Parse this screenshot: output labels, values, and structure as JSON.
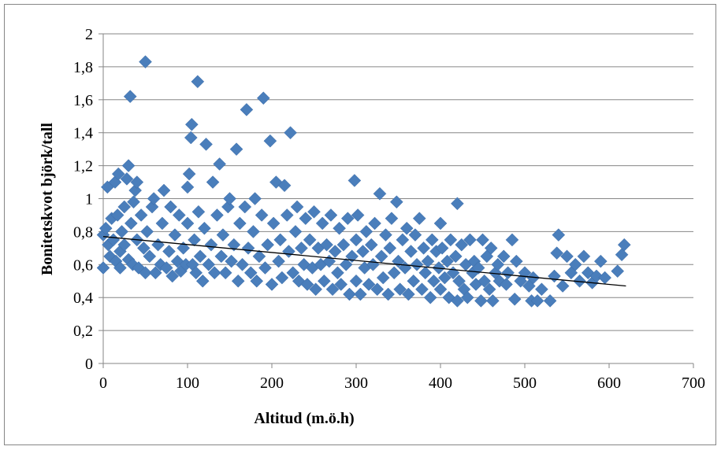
{
  "chart_data": {
    "type": "scatter",
    "title": "",
    "xlabel": "Altitud (m.ö.h)",
    "ylabel": "Bonitetskvot björk/tall",
    "xlim": [
      0,
      700
    ],
    "ylim": [
      0,
      2
    ],
    "x_ticks": [
      0,
      100,
      200,
      300,
      400,
      500,
      600,
      700
    ],
    "y_ticks": [
      0,
      0.2,
      0.4,
      0.6,
      0.8,
      1,
      1.2,
      1.4,
      1.6,
      1.8,
      2
    ],
    "x_tick_labels": [
      "0",
      "100",
      "200",
      "300",
      "400",
      "500",
      "600",
      "700"
    ],
    "y_tick_labels": [
      "0",
      "0,2",
      "0,4",
      "0,6",
      "0,8",
      "1",
      "1,2",
      "1,4",
      "1,6",
      "1,8",
      "2"
    ],
    "grid": "horizontal",
    "legend": "none",
    "marker": "diamond",
    "marker_color": "#4A7EBB",
    "trendline": {
      "x": [
        0,
        620
      ],
      "y": [
        0.77,
        0.47
      ],
      "color": "#000000"
    },
    "series": [
      {
        "points": [
          [
            0,
            0.58
          ],
          [
            0,
            0.78
          ],
          [
            3,
            0.82
          ],
          [
            5,
            1.07
          ],
          [
            6,
            0.72
          ],
          [
            8,
            0.65
          ],
          [
            10,
            0.88
          ],
          [
            12,
            0.75
          ],
          [
            14,
            1.1
          ],
          [
            15,
            0.62
          ],
          [
            17,
            0.9
          ],
          [
            18,
            1.15
          ],
          [
            20,
            0.58
          ],
          [
            20,
            0.68
          ],
          [
            22,
            0.8
          ],
          [
            25,
            0.95
          ],
          [
            25,
            0.72
          ],
          [
            28,
            1.12
          ],
          [
            30,
            0.63
          ],
          [
            30,
            1.2
          ],
          [
            32,
            1.62
          ],
          [
            33,
            0.85
          ],
          [
            35,
            0.6
          ],
          [
            36,
            0.98
          ],
          [
            38,
            1.05
          ],
          [
            40,
            0.75
          ],
          [
            40,
            1.1
          ],
          [
            42,
            0.58
          ],
          [
            45,
            0.9
          ],
          [
            48,
            0.7
          ],
          [
            50,
            1.83
          ],
          [
            50,
            0.55
          ],
          [
            52,
            0.8
          ],
          [
            55,
            0.65
          ],
          [
            58,
            0.95
          ],
          [
            60,
            1.0
          ],
          [
            62,
            0.55
          ],
          [
            65,
            0.72
          ],
          [
            68,
            0.6
          ],
          [
            70,
            0.85
          ],
          [
            72,
            1.05
          ],
          [
            75,
            0.58
          ],
          [
            78,
            0.68
          ],
          [
            80,
            0.95
          ],
          [
            82,
            0.53
          ],
          [
            85,
            0.78
          ],
          [
            88,
            0.62
          ],
          [
            90,
            0.9
          ],
          [
            92,
            0.56
          ],
          [
            95,
            0.7
          ],
          [
            98,
            0.6
          ],
          [
            100,
            1.07
          ],
          [
            100,
            0.85
          ],
          [
            102,
            1.15
          ],
          [
            104,
            1.37
          ],
          [
            105,
            1.45
          ],
          [
            106,
            0.6
          ],
          [
            108,
            0.75
          ],
          [
            110,
            0.55
          ],
          [
            112,
            1.71
          ],
          [
            113,
            0.92
          ],
          [
            115,
            0.65
          ],
          [
            118,
            0.5
          ],
          [
            120,
            0.82
          ],
          [
            122,
            1.33
          ],
          [
            125,
            0.6
          ],
          [
            128,
            0.72
          ],
          [
            130,
            1.1
          ],
          [
            132,
            0.55
          ],
          [
            135,
            0.9
          ],
          [
            138,
            1.21
          ],
          [
            140,
            0.65
          ],
          [
            142,
            0.78
          ],
          [
            145,
            0.55
          ],
          [
            148,
            0.95
          ],
          [
            150,
            1.0
          ],
          [
            152,
            0.62
          ],
          [
            155,
            0.72
          ],
          [
            158,
            1.3
          ],
          [
            160,
            0.5
          ],
          [
            162,
            0.85
          ],
          [
            165,
            0.6
          ],
          [
            168,
            0.95
          ],
          [
            170,
            1.54
          ],
          [
            172,
            0.7
          ],
          [
            175,
            0.55
          ],
          [
            178,
            0.8
          ],
          [
            180,
            1.0
          ],
          [
            182,
            0.5
          ],
          [
            185,
            0.65
          ],
          [
            188,
            0.9
          ],
          [
            190,
            1.61
          ],
          [
            192,
            0.58
          ],
          [
            195,
            0.72
          ],
          [
            198,
            1.35
          ],
          [
            200,
            0.48
          ],
          [
            202,
            0.85
          ],
          [
            205,
            1.1
          ],
          [
            208,
            0.62
          ],
          [
            210,
            0.75
          ],
          [
            212,
            0.52
          ],
          [
            215,
            1.08
          ],
          [
            218,
            0.9
          ],
          [
            220,
            0.68
          ],
          [
            222,
            1.4
          ],
          [
            225,
            0.55
          ],
          [
            228,
            0.8
          ],
          [
            230,
            0.95
          ],
          [
            232,
            0.5
          ],
          [
            235,
            0.7
          ],
          [
            238,
            0.6
          ],
          [
            240,
            0.88
          ],
          [
            242,
            0.48
          ],
          [
            245,
            0.75
          ],
          [
            248,
            0.58
          ],
          [
            250,
            0.92
          ],
          [
            252,
            0.45
          ],
          [
            255,
            0.7
          ],
          [
            258,
            0.6
          ],
          [
            260,
            0.85
          ],
          [
            262,
            0.5
          ],
          [
            265,
            0.72
          ],
          [
            268,
            0.62
          ],
          [
            270,
            0.9
          ],
          [
            272,
            0.45
          ],
          [
            275,
            0.68
          ],
          [
            278,
            0.55
          ],
          [
            280,
            0.82
          ],
          [
            282,
            0.48
          ],
          [
            285,
            0.72
          ],
          [
            288,
            0.6
          ],
          [
            290,
            0.88
          ],
          [
            292,
            0.42
          ],
          [
            295,
            0.65
          ],
          [
            298,
            1.11
          ],
          [
            300,
            0.5
          ],
          [
            300,
            0.75
          ],
          [
            302,
            0.9
          ],
          [
            305,
            0.42
          ],
          [
            308,
            0.68
          ],
          [
            310,
            0.58
          ],
          [
            312,
            0.8
          ],
          [
            315,
            0.48
          ],
          [
            318,
            0.72
          ],
          [
            320,
            0.6
          ],
          [
            322,
            0.85
          ],
          [
            325,
            0.45
          ],
          [
            328,
            1.03
          ],
          [
            330,
            0.65
          ],
          [
            332,
            0.52
          ],
          [
            335,
            0.78
          ],
          [
            338,
            0.42
          ],
          [
            340,
            0.7
          ],
          [
            342,
            0.88
          ],
          [
            345,
            0.55
          ],
          [
            348,
            0.98
          ],
          [
            350,
            0.62
          ],
          [
            352,
            0.45
          ],
          [
            355,
            0.75
          ],
          [
            358,
            0.58
          ],
          [
            360,
            0.82
          ],
          [
            362,
            0.42
          ],
          [
            365,
            0.68
          ],
          [
            368,
            0.5
          ],
          [
            370,
            0.78
          ],
          [
            372,
            0.6
          ],
          [
            375,
            0.88
          ],
          [
            378,
            0.45
          ],
          [
            380,
            0.7
          ],
          [
            382,
            0.55
          ],
          [
            385,
            0.62
          ],
          [
            388,
            0.4
          ],
          [
            390,
            0.75
          ],
          [
            392,
            0.5
          ],
          [
            395,
            0.68
          ],
          [
            398,
            0.58
          ],
          [
            400,
            0.85
          ],
          [
            400,
            0.45
          ],
          [
            402,
            0.7
          ],
          [
            405,
            0.52
          ],
          [
            408,
            0.62
          ],
          [
            410,
            0.4
          ],
          [
            412,
            0.75
          ],
          [
            415,
            0.55
          ],
          [
            418,
            0.65
          ],
          [
            420,
            0.97
          ],
          [
            420,
            0.38
          ],
          [
            422,
            0.5
          ],
          [
            425,
            0.72
          ],
          [
            428,
            0.45
          ],
          [
            430,
            0.6
          ],
          [
            432,
            0.4
          ],
          [
            435,
            0.75
          ],
          [
            438,
            0.55
          ],
          [
            440,
            0.62
          ],
          [
            442,
            0.48
          ],
          [
            445,
            0.58
          ],
          [
            448,
            0.38
          ],
          [
            450,
            0.75
          ],
          [
            452,
            0.5
          ],
          [
            455,
            0.65
          ],
          [
            458,
            0.45
          ],
          [
            460,
            0.7
          ],
          [
            462,
            0.38
          ],
          [
            465,
            0.55
          ],
          [
            468,
            0.6
          ],
          [
            470,
            0.5
          ],
          [
            475,
            0.65
          ],
          [
            478,
            0.48
          ],
          [
            480,
            0.55
          ],
          [
            485,
            0.75
          ],
          [
            488,
            0.39
          ],
          [
            490,
            0.62
          ],
          [
            495,
            0.5
          ],
          [
            500,
            0.55
          ],
          [
            505,
            0.47
          ],
          [
            508,
            0.38
          ],
          [
            510,
            0.52
          ],
          [
            515,
            0.38
          ],
          [
            520,
            0.45
          ],
          [
            530,
            0.38
          ],
          [
            535,
            0.53
          ],
          [
            538,
            0.67
          ],
          [
            540,
            0.78
          ],
          [
            545,
            0.47
          ],
          [
            550,
            0.65
          ],
          [
            555,
            0.55
          ],
          [
            560,
            0.6
          ],
          [
            565,
            0.5
          ],
          [
            570,
            0.65
          ],
          [
            575,
            0.55
          ],
          [
            580,
            0.49
          ],
          [
            585,
            0.53
          ],
          [
            590,
            0.62
          ],
          [
            595,
            0.52
          ],
          [
            610,
            0.56
          ],
          [
            615,
            0.66
          ],
          [
            618,
            0.72
          ]
        ]
      }
    ]
  }
}
